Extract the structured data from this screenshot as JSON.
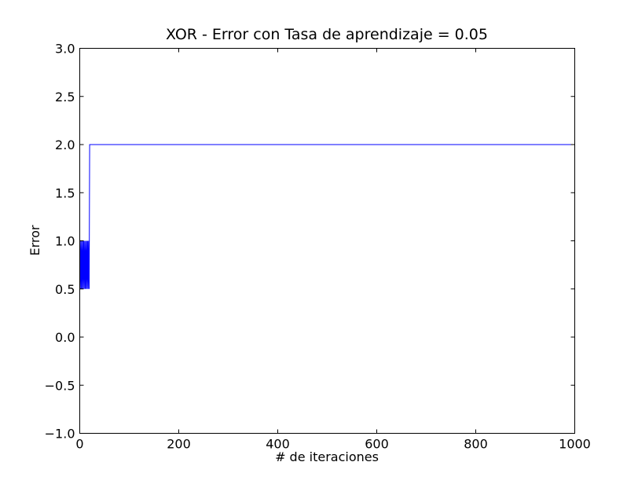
{
  "chart_data": {
    "type": "line",
    "title": "XOR - Error con Tasa de aprendizaje = 0.05",
    "xlabel": "# de iteraciones",
    "ylabel": "Error",
    "xlim": [
      0,
      1000
    ],
    "ylim": [
      -1.0,
      3.0
    ],
    "xticks": [
      0,
      200,
      400,
      600,
      800,
      1000
    ],
    "xtick_labels": [
      "0",
      "200",
      "400",
      "600",
      "800",
      "1000"
    ],
    "yticks": [
      -1.0,
      -0.5,
      0.0,
      0.5,
      1.0,
      1.5,
      2.0,
      2.5,
      3.0
    ],
    "ytick_labels": [
      "−1.0",
      "−0.5",
      "0.0",
      "0.5",
      "1.0",
      "1.5",
      "2.0",
      "2.5",
      "3.0"
    ],
    "grid": false,
    "series": [
      {
        "color": "#0000ff",
        "x": [
          0,
          1,
          2,
          3,
          4,
          5,
          6,
          7,
          8,
          9,
          10,
          11,
          12,
          13,
          14,
          15,
          16,
          17,
          18,
          19,
          20,
          21,
          22,
          1000
        ],
        "y": [
          1.0,
          0.5,
          1.0,
          0.5,
          1.0,
          0.5,
          1.0,
          0.5,
          1.0,
          0.5,
          1.0,
          0.5,
          1.0,
          0.5,
          1.0,
          0.5,
          1.0,
          0.5,
          1.0,
          0.5,
          2.0,
          2.0,
          2.0,
          2.0
        ]
      }
    ]
  }
}
